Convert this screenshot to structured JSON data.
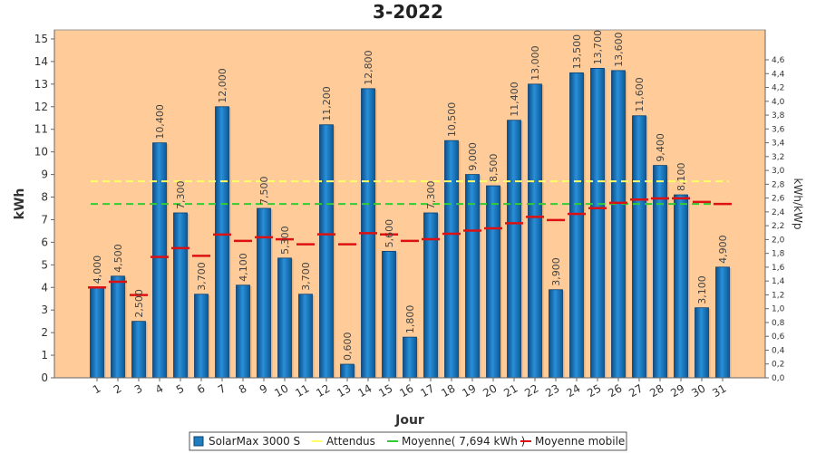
{
  "chart_data": {
    "type": "bar",
    "title": "3-2022",
    "xlabel": "Jour",
    "ylabel": "kWh",
    "y2label": "kWh/kWp",
    "ylim": [
      0,
      15.4
    ],
    "yticks": [
      "0",
      "1",
      "2",
      "3",
      "4",
      "5",
      "6",
      "7",
      "8",
      "9",
      "10",
      "11",
      "12",
      "13",
      "14",
      "15"
    ],
    "y2ticks": [
      "0,0",
      "0,2",
      "0,4",
      "0,6",
      "0,8",
      "1,0",
      "1,2",
      "1,4",
      "1,6",
      "1,8",
      "2,0",
      "2,2",
      "2,4",
      "2,6",
      "2,8",
      "3,0",
      "3,2",
      "3,4",
      "3,6",
      "3,8",
      "4,0",
      "4,2",
      "4,4",
      "4,6"
    ],
    "y2_per_kwh": 0.3268,
    "categories": [
      "1",
      "2",
      "3",
      "4",
      "5",
      "6",
      "7",
      "8",
      "9",
      "10",
      "11",
      "12",
      "13",
      "14",
      "15",
      "16",
      "17",
      "18",
      "19",
      "20",
      "21",
      "22",
      "23",
      "24",
      "25",
      "26",
      "27",
      "28",
      "29",
      "30",
      "31"
    ],
    "series": [
      {
        "name": "SolarMax 3000 S",
        "values": [
          4.0,
          4.5,
          2.5,
          10.4,
          7.3,
          3.7,
          12.0,
          4.1,
          7.5,
          5.3,
          3.7,
          11.2,
          0.6,
          12.8,
          5.6,
          1.8,
          7.3,
          10.5,
          9.0,
          8.5,
          11.4,
          13.0,
          3.9,
          13.5,
          13.7,
          13.6,
          11.6,
          9.4,
          8.1,
          3.1,
          4.9
        ]
      }
    ],
    "data_labels": [
      "4,000",
      "4,500",
      "2,500",
      "10,400",
      "7,300",
      "3,700",
      "12,000",
      "4,100",
      "7,500",
      "5,300",
      "3,700",
      "11,200",
      "0,600",
      "12,800",
      "5,600",
      "1,800",
      "7,300",
      "10,500",
      "9,000",
      "8,500",
      "11,400",
      "13,000",
      "3,900",
      "13,500",
      "13,700",
      "13,600",
      "11,600",
      "9,400",
      "8,100",
      "3,100",
      "4,900"
    ],
    "attendus": 8.7,
    "moyenne": 7.694,
    "moyenne_mobile": [
      4.0,
      4.25,
      3.667,
      5.35,
      5.74,
      5.4,
      6.343,
      6.063,
      6.222,
      6.13,
      5.909,
      6.35,
      5.908,
      6.4,
      6.347,
      6.063,
      6.135,
      6.378,
      6.516,
      6.615,
      6.843,
      7.123,
      6.983,
      7.254,
      7.512,
      7.746,
      7.889,
      7.943,
      7.948,
      7.787,
      7.694
    ],
    "legend": [
      "SolarMax 3000 S",
      "Attendus",
      "Moyenne( 7,694 kWh )",
      "Moyenne mobile"
    ],
    "colors": {
      "bar": "#1f7dc0",
      "bar_dark": "#0c4f85",
      "attendus": "#ffff66",
      "moyenne": "#33cc33",
      "moyenne_mobile": "#dd1111",
      "plot_bg": "#ffcc99"
    }
  }
}
